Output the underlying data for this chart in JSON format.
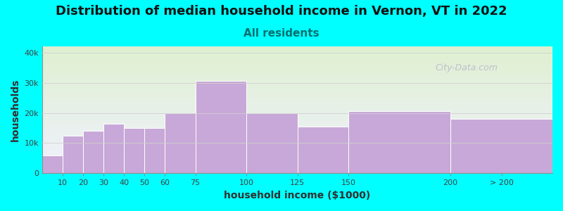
{
  "title": "Distribution of median household income in Vernon, VT in 2022",
  "subtitle": "All residents",
  "xlabel": "household income ($1000)",
  "ylabel": "households",
  "background_color": "#00FFFF",
  "bar_color": "#c8a8d8",
  "bar_edge_color": "#ffffff",
  "categories": [
    "10",
    "20",
    "30",
    "40",
    "50",
    "60",
    "75",
    "100",
    "125",
    "150",
    "200",
    "> 200"
  ],
  "values": [
    6000,
    12500,
    14000,
    16500,
    15000,
    15000,
    20000,
    30500,
    20000,
    15500,
    20500,
    18000
  ],
  "left_edges": [
    0,
    10,
    20,
    30,
    40,
    50,
    60,
    75,
    100,
    125,
    150,
    200
  ],
  "widths": [
    10,
    10,
    10,
    10,
    10,
    10,
    15,
    25,
    25,
    25,
    50,
    50
  ],
  "xlim": [
    0,
    250
  ],
  "xtick_positions": [
    10,
    20,
    30,
    40,
    50,
    60,
    75,
    100,
    125,
    150,
    200,
    225
  ],
  "xtick_labels": [
    "10",
    "20",
    "30",
    "40",
    "50",
    "60",
    "75",
    "100",
    "125",
    "150",
    "200",
    "> 200"
  ],
  "ylim": [
    0,
    42000
  ],
  "yticks": [
    0,
    10000,
    20000,
    30000,
    40000
  ],
  "ytick_labels": [
    "0",
    "10k",
    "20k",
    "30k",
    "40k"
  ],
  "title_fontsize": 13,
  "subtitle_fontsize": 11,
  "axis_label_fontsize": 10,
  "tick_label_fontsize": 8,
  "watermark_text": "City-Data.com",
  "watermark_color": "#b8b8cc",
  "plot_bg_top": "#dff0d0",
  "plot_bg_bottom": "#f0f0ff",
  "subtitle_color": "#007070"
}
